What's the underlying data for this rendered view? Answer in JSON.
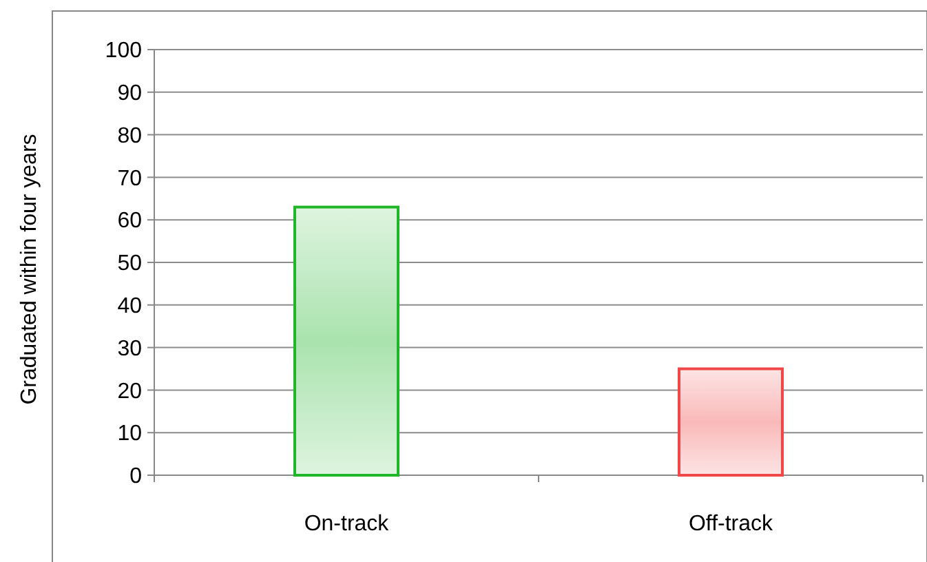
{
  "chart_data": {
    "type": "bar",
    "ylabel": "Graduated within four years",
    "categories": [
      "On-track",
      "Off-track"
    ],
    "values": [
      63,
      25
    ],
    "colors": [
      "#20b629",
      "#f04848"
    ],
    "ylim": [
      0,
      100
    ],
    "yticks": [
      0,
      10,
      20,
      30,
      40,
      50,
      60,
      70,
      80,
      90,
      100
    ],
    "grid": "y"
  }
}
